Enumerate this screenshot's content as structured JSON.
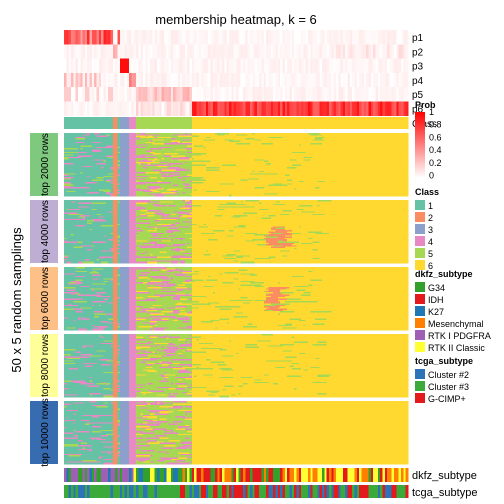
{
  "chart_data": {
    "type": "heatmap",
    "title": "membership heatmap, k = 6",
    "ylabel": "50 x 5 random samplings",
    "columns": 148,
    "top_rows": [
      "p1",
      "p2",
      "p3",
      "p4",
      "p5",
      "p6"
    ],
    "class_row_label": "Class",
    "group_labels": [
      "top 2000 rows",
      "top 4000 rows",
      "top 6000 rows",
      "top 8000 rows",
      "top 10000 rows"
    ],
    "group_colors": [
      "#7FC97F",
      "#BEAED4",
      "#FDC086",
      "#FFFF99",
      "#386CB0"
    ],
    "class_segments": [
      {
        "class": 1,
        "cols": 21
      },
      {
        "class": 2,
        "cols": 2
      },
      {
        "class": 1,
        "cols": 1
      },
      {
        "class": 3,
        "cols": 4
      },
      {
        "class": 4,
        "cols": 3
      },
      {
        "class": 5,
        "cols": 24
      },
      {
        "class": 6,
        "cols": 93
      }
    ],
    "bottom_rows": [
      "dkfz_subtype",
      "tcga_subtype"
    ],
    "legends": {
      "prob": {
        "title": "Prob",
        "ticks": [
          "1",
          "0.8",
          "0.6",
          "0.4",
          "0.2",
          "0"
        ],
        "low": "#ffffff",
        "high": "#ff0000"
      },
      "class": {
        "title": "Class",
        "items": [
          {
            "label": "1",
            "color": "#66C2A5"
          },
          {
            "label": "2",
            "color": "#FC8D62"
          },
          {
            "label": "3",
            "color": "#8DA0CB"
          },
          {
            "label": "4",
            "color": "#E78AC3"
          },
          {
            "label": "5",
            "color": "#A6D854"
          },
          {
            "label": "6",
            "color": "#FFD92F"
          }
        ]
      },
      "dkfz": {
        "title": "dkfz_subtype",
        "items": [
          {
            "label": "G34",
            "color": "#33A02C"
          },
          {
            "label": "IDH",
            "color": "#E31A1C"
          },
          {
            "label": "K27",
            "color": "#1F78B4"
          },
          {
            "label": "Mesenchymal",
            "color": "#FF7F00"
          },
          {
            "label": "RTK I PDGFRA",
            "color": "#9E5FB4"
          },
          {
            "label": "RTK II Classic",
            "color": "#FFFF33"
          }
        ]
      },
      "tcga": {
        "title": "tcga_subtype",
        "items": [
          {
            "label": "Cluster #2",
            "color": "#2C73B8"
          },
          {
            "label": "Cluster #3",
            "color": "#3BAA3B"
          },
          {
            "label": "G-CIMP+",
            "color": "#E31A1C"
          }
        ]
      }
    }
  }
}
